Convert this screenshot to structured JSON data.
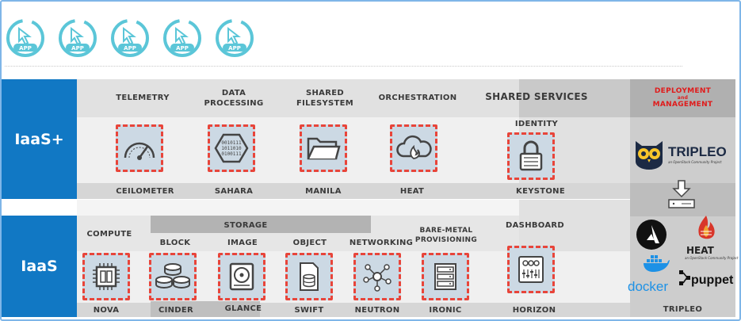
{
  "app_icons": [
    {
      "label": "APP"
    },
    {
      "label": "APP"
    },
    {
      "label": "APP"
    },
    {
      "label": "APP"
    },
    {
      "label": "APP"
    }
  ],
  "tiers": {
    "iaas_plus": "IaaS+",
    "iaas": "IaaS"
  },
  "iaas_plus": {
    "headers": {
      "telemetry": "TELEMETRY",
      "data_processing": "DATA\nPROCESSING",
      "shared_filesystem": "SHARED\nFILESYSTEM",
      "orchestration": "ORCHESTRATION",
      "shared_services": "SHARED SERVICES",
      "identity": "IDENTITY"
    },
    "services": {
      "ceilometer": "CEILOMETER",
      "sahara": "SAHARA",
      "manila": "MANILA",
      "heat": "HEAT",
      "keystone": "KEYSTONE"
    }
  },
  "iaas": {
    "headers": {
      "compute": "COMPUTE",
      "storage": "STORAGE",
      "block": "BLOCK",
      "image": "IMAGE",
      "object": "OBJECT",
      "networking": "NETWORKING",
      "bare_metal": "BARE-METAL\nPROVISIONING",
      "dashboard": "DASHBOARD"
    },
    "services": {
      "nova": "NOVA",
      "cinder": "CINDER",
      "glance": "GLANCE",
      "swift": "SWIFT",
      "neutron": "NEUTRON",
      "ironic": "IRONIC",
      "horizon": "HORIZON"
    }
  },
  "deployment": {
    "title_line1": "DEPLOYMENT",
    "title_line2": "and",
    "title_line3": "MANAGEMENT",
    "tripleo_logo": "TRIPLEO",
    "tripleo_sub": "an OpenStack Community Project",
    "heat_logo": "HEAT",
    "heat_sub": "an OpenStack Community Project",
    "docker": "docker",
    "puppet": "puppet",
    "footer": "TRIPLEO"
  },
  "colors": {
    "blue": "#1178c4",
    "tile_fill": "#ccd9e4",
    "tile_dash": "#e8453a",
    "red_title": "#e01b1b",
    "app_teal": "#5bc6d8"
  }
}
